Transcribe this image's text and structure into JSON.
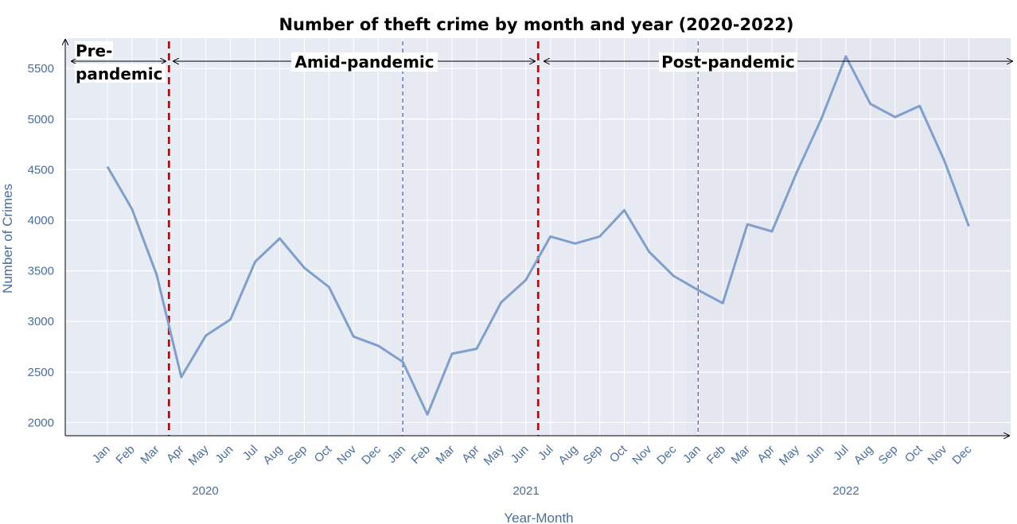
{
  "chart_data": {
    "type": "line",
    "title": "Number of theft crime by month and year (2020-2022)",
    "xlabel": "Year-Month",
    "ylabel": "Number of Crimes",
    "ylim": [
      1870,
      5800
    ],
    "yticks": [
      2000,
      2500,
      3000,
      3500,
      4000,
      4500,
      5000,
      5500
    ],
    "grid": true,
    "colors": {
      "line": "#7f9fcc",
      "background_2020": "#e6ebf4",
      "background_2021": "#e8eaf3",
      "background_2022": "#e5e7f0",
      "grid": "#ffffff",
      "axis_text": "#4a6d9e",
      "period_line": "#d40000",
      "year_line": "#4a70b0"
    },
    "months": [
      "Jan",
      "Feb",
      "Mar",
      "Apr",
      "May",
      "Jun",
      "Jul",
      "Aug",
      "Sep",
      "Oct",
      "Nov",
      "Dec"
    ],
    "years": [
      "2020",
      "2021",
      "2022"
    ],
    "series": [
      {
        "values": [
          4530,
          4110,
          3460,
          2450,
          2860,
          3020,
          3590,
          3820,
          3530,
          3340,
          2850,
          2760,
          2600,
          2080,
          2680,
          2730,
          3190,
          3410,
          3840,
          3770,
          3840,
          4100,
          3690,
          3450,
          3310,
          3180,
          3960,
          3890,
          4470,
          5000,
          5620,
          5150,
          5020,
          5130,
          4590,
          3940
        ]
      }
    ],
    "year_boundaries": [
      "2021 Jan",
      "2022 Jan"
    ],
    "period_boundaries": [
      "2020 Mar/Apr",
      "2021 Jun/Jul"
    ],
    "periods": [
      {
        "label_line1": "Pre-",
        "label_line2": "pandemic"
      },
      {
        "label": "Amid-pandemic"
      },
      {
        "label": "Post-pandemic"
      }
    ]
  }
}
